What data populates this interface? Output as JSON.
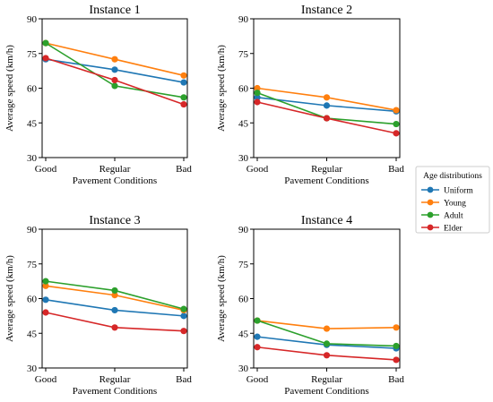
{
  "chart_data": [
    {
      "type": "line",
      "title": "Instance 1",
      "xlabel": "Pavement Conditions",
      "ylabel": "Average speed (km/h)",
      "categories": [
        "Good",
        "Regular",
        "Bad"
      ],
      "yticks": [
        30,
        45,
        60,
        75,
        90
      ],
      "ylim": [
        30,
        90
      ],
      "series": [
        {
          "name": "Uniform",
          "values": [
            72.5,
            68,
            62.5
          ]
        },
        {
          "name": "Young",
          "values": [
            79.5,
            72.5,
            65.5
          ]
        },
        {
          "name": "Adult",
          "values": [
            79.5,
            61,
            56
          ]
        },
        {
          "name": "Elder",
          "values": [
            73,
            63.5,
            53
          ]
        }
      ]
    },
    {
      "type": "line",
      "title": "Instance 2",
      "xlabel": "Pavement Conditions",
      "ylabel": "Average speed (km/h)",
      "categories": [
        "Good",
        "Regular",
        "Bad"
      ],
      "yticks": [
        30,
        45,
        60,
        75,
        90
      ],
      "ylim": [
        30,
        90
      ],
      "series": [
        {
          "name": "Uniform",
          "values": [
            56,
            52.5,
            50
          ]
        },
        {
          "name": "Young",
          "values": [
            60,
            56,
            50.5
          ]
        },
        {
          "name": "Adult",
          "values": [
            58,
            47,
            44.5
          ]
        },
        {
          "name": "Elder",
          "values": [
            54,
            47,
            40.5
          ]
        }
      ]
    },
    {
      "type": "line",
      "title": "Instance 3",
      "xlabel": "Pavement Conditions",
      "ylabel": "Average speed (km/h)",
      "categories": [
        "Good",
        "Regular",
        "Bad"
      ],
      "yticks": [
        30,
        45,
        60,
        75,
        90
      ],
      "ylim": [
        30,
        90
      ],
      "series": [
        {
          "name": "Uniform",
          "values": [
            59.5,
            55,
            52.5
          ]
        },
        {
          "name": "Young",
          "values": [
            65.5,
            61.5,
            55
          ]
        },
        {
          "name": "Adult",
          "values": [
            67.5,
            63.5,
            55.5
          ]
        },
        {
          "name": "Elder",
          "values": [
            54,
            47.5,
            46
          ]
        }
      ]
    },
    {
      "type": "line",
      "title": "Instance 4",
      "xlabel": "Pavement Conditions",
      "ylabel": "Average speed (km/h)",
      "categories": [
        "Good",
        "Regular",
        "Bad"
      ],
      "yticks": [
        30,
        45,
        60,
        75,
        90
      ],
      "ylim": [
        30,
        90
      ],
      "series": [
        {
          "name": "Uniform",
          "values": [
            43.5,
            40,
            38.5
          ]
        },
        {
          "name": "Young",
          "values": [
            50.5,
            47,
            47.5
          ]
        },
        {
          "name": "Adult",
          "values": [
            50.5,
            40.5,
            39.5
          ]
        },
        {
          "name": "Elder",
          "values": [
            39,
            35.5,
            33.5
          ]
        }
      ]
    }
  ],
  "legend": {
    "title": "Age distributions",
    "placement": "right",
    "entries": [
      "Uniform",
      "Young",
      "Adult",
      "Elder"
    ]
  },
  "series_colors": {
    "Uniform": "#1f77b4",
    "Young": "#ff7f0e",
    "Adult": "#2ca02c",
    "Elder": "#d62728"
  }
}
